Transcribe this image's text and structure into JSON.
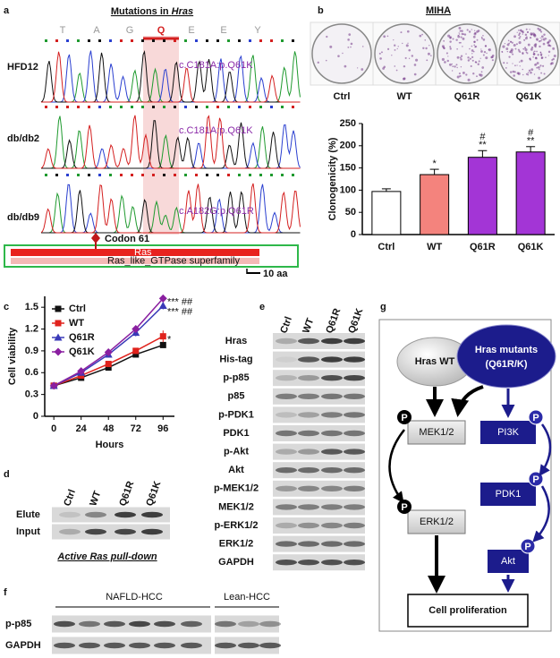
{
  "panel_labels": [
    "a",
    "b",
    "c",
    "d",
    "e",
    "f",
    "g"
  ],
  "panel_a": {
    "title_prefix": "Mutations in ",
    "title_gene": "Hras",
    "residues": [
      "T",
      "A",
      "G",
      "Q",
      "E",
      "E",
      "Y"
    ],
    "samples": [
      {
        "name": "HFD12",
        "mutation": "c.C181A:p.Q61K"
      },
      {
        "name": "db/db2",
        "mutation": "c.C181A:p.Q61K"
      },
      {
        "name": "db/db9",
        "mutation": "c.A182G:p.Q61R"
      }
    ],
    "codon_label": "Codon 61",
    "domain": "Ras",
    "superfamily": "Ras_like_GTPase superfamily",
    "scale_bar": "10 aa"
  },
  "panel_b": {
    "title": "MIHA",
    "plates": [
      "Ctrl",
      "WT",
      "Q61R",
      "Q61K"
    ]
  },
  "chart_data": [
    {
      "type": "bar",
      "y_label": "Clonogenicity (%)",
      "categories": [
        "Ctrl",
        "WT",
        "Q61R",
        "Q61K"
      ],
      "values": [
        97,
        135,
        174,
        186
      ],
      "errors": [
        6,
        12,
        15,
        12
      ],
      "colors": [
        "#ffffff",
        "#f4837d",
        "#a335d6",
        "#a335d6"
      ],
      "significance": [
        null,
        [
          "*"
        ],
        [
          "#",
          "**"
        ],
        [
          "#",
          "**"
        ]
      ],
      "ylim": [
        0,
        250
      ],
      "yticks": [
        0,
        50,
        100,
        150,
        200,
        250
      ]
    },
    {
      "type": "line",
      "x_label": "Hours",
      "y_label": "Cell viability",
      "x": [
        0,
        24,
        48,
        72,
        96
      ],
      "series": [
        {
          "name": "Ctrl",
          "color": "#111111",
          "marker": "square",
          "values": [
            0.42,
            0.53,
            0.67,
            0.85,
            0.98
          ],
          "errors": [
            0.02,
            0.02,
            0.02,
            0.03,
            0.03
          ],
          "significance": null
        },
        {
          "name": "WT",
          "color": "#e0221c",
          "marker": "square",
          "values": [
            0.42,
            0.56,
            0.72,
            0.9,
            1.1
          ],
          "errors": [
            0.02,
            0.02,
            0.03,
            0.04,
            0.08
          ],
          "significance": "*"
        },
        {
          "name": "Q61R",
          "color": "#3a3ab8",
          "marker": "triangle",
          "values": [
            0.42,
            0.6,
            0.85,
            1.15,
            1.52
          ],
          "errors": [
            0.02,
            0.03,
            0.03,
            0.05,
            0.05
          ],
          "significance": "*** ##"
        },
        {
          "name": "Q61K",
          "color": "#8a1fa0",
          "marker": "diamond",
          "values": [
            0.42,
            0.62,
            0.88,
            1.2,
            1.62
          ],
          "errors": [
            0.02,
            0.03,
            0.03,
            0.05,
            0.05
          ],
          "significance": "*** ##"
        }
      ],
      "xlim": [
        -8,
        106
      ],
      "xticks": [
        0,
        24,
        48,
        72,
        96
      ],
      "ylim": [
        0,
        1.65
      ],
      "yticks": [
        0,
        0.3,
        0.6,
        0.9,
        1.2,
        1.5
      ],
      "legend": "upper left"
    }
  ],
  "panel_d": {
    "lanes": [
      "Ctrl",
      "WT",
      "Q61R",
      "Q61K"
    ],
    "rows": [
      "Elute",
      "Input"
    ],
    "caption": "Active Ras pull-down"
  },
  "panel_e": {
    "lanes": [
      "Ctrl",
      "WT",
      "Q61R",
      "Q61K"
    ],
    "rows": [
      "Hras",
      "His-tag",
      "p-p85",
      "p85",
      "p-PDK1",
      "PDK1",
      "p-Akt",
      "Akt",
      "p-MEK1/2",
      "MEK1/2",
      "p-ERK1/2",
      "ERK1/2",
      "GAPDH"
    ]
  },
  "panel_f": {
    "groups": [
      "NAFLD-HCC",
      "Lean-HCC"
    ],
    "rows": [
      "p-p85",
      "GAPDH"
    ]
  },
  "panel_g": {
    "hras_wt": "Hras WT",
    "hras_mutants": "Hras mutants",
    "mutants_detail": "(Q61R/K)",
    "mek": "MEK1/2",
    "erk": "ERK1/2",
    "pi3k": "PI3K",
    "pdk1": "PDK1",
    "akt": "Akt",
    "outcome": "Cell proliferation",
    "phospho": "P"
  }
}
